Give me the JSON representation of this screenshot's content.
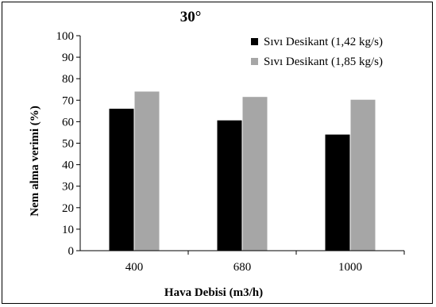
{
  "chart_data": {
    "type": "bar",
    "title": "30°",
    "xlabel": "Hava Debisi (m3/h)",
    "ylabel": "Nem alma verimi (%)",
    "categories": [
      "400",
      "680",
      "1000"
    ],
    "ylim": [
      0,
      100
    ],
    "yticks": [
      0,
      10,
      20,
      30,
      40,
      50,
      60,
      70,
      80,
      90,
      100
    ],
    "grid": false,
    "legend_position": "top-right",
    "series": [
      {
        "name": "Sıvı Desikant (1,42 kg/s)",
        "values": [
          66.2,
          60.8,
          54.2
        ],
        "color": "#000000"
      },
      {
        "name": "Sıvı Desikant (1,85 kg/s)",
        "values": [
          74.2,
          71.7,
          70.4
        ],
        "color": "#a6a6a6"
      }
    ]
  }
}
